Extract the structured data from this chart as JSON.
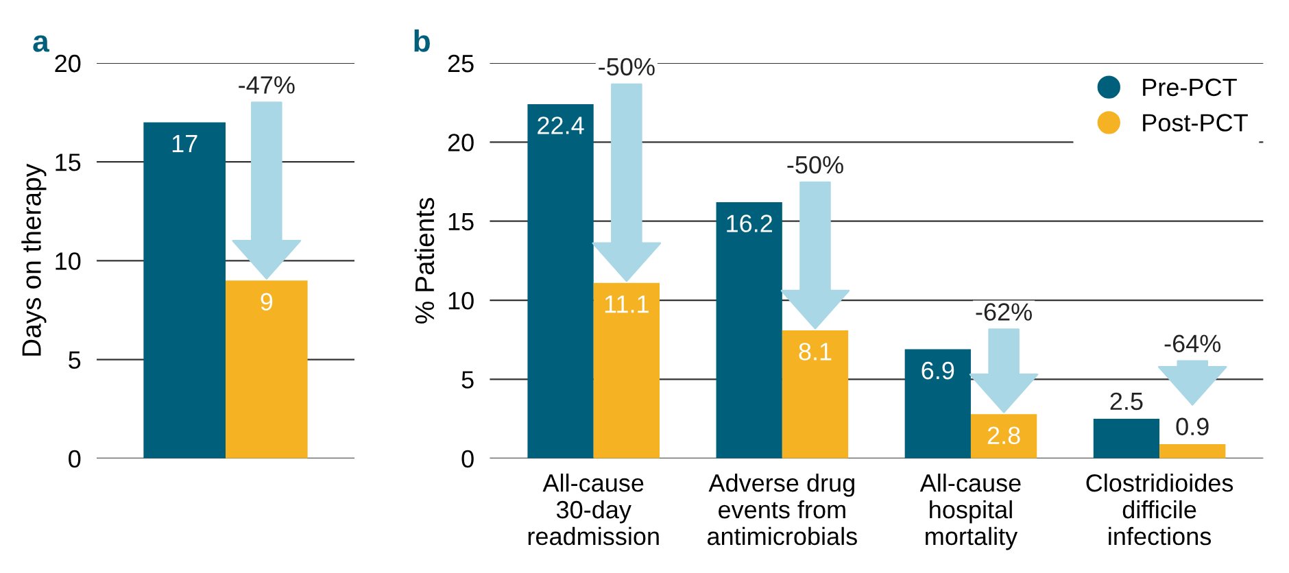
{
  "chart_data": [
    {
      "type": "bar",
      "title": "a",
      "ylabel": "Days on therapy",
      "categories": [
        null
      ],
      "series": [
        {
          "color": "#005f7a",
          "values": [
            17
          ]
        },
        {
          "color": "#f5b324",
          "values": [
            9
          ]
        }
      ],
      "ylim": [
        0,
        20
      ],
      "yticks": [
        0,
        5,
        10,
        15,
        20
      ],
      "grid": "y",
      "data_labels": true,
      "annotations": [
        "-47%"
      ]
    },
    {
      "type": "bar",
      "title": "b",
      "ylabel": "% Patients",
      "categories": [
        "All-cause\n30-day\nreadmission",
        "Adverse drug\nevents from\nantimicrobials",
        "All-cause\nhospital\nmortality",
        "Clostridioides\ndifficile\ninfections"
      ],
      "series": [
        {
          "name": "Pre-PCT",
          "color": "#005f7a",
          "values": [
            22.4,
            16.2,
            6.9,
            2.5
          ]
        },
        {
          "name": "Post-PCT",
          "color": "#f5b324",
          "values": [
            11.1,
            8.1,
            2.8,
            0.9
          ]
        }
      ],
      "ylim": [
        0,
        25
      ],
      "yticks": [
        0,
        5,
        10,
        15,
        20,
        25
      ],
      "grid": "y",
      "legend": "top right",
      "marker": "circle",
      "data_labels": true,
      "annotations": [
        "-50%",
        "-50%",
        "-62%",
        "-64%"
      ]
    }
  ]
}
